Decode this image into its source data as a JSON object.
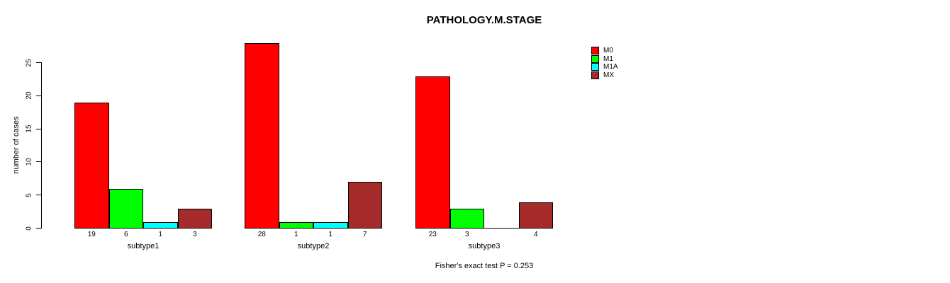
{
  "chart_data": {
    "type": "bar",
    "title": "PATHOLOGY.M.STAGE",
    "ylabel": "number of cases",
    "xlabel": "",
    "categories": [
      "subtype1",
      "subtype2",
      "subtype3"
    ],
    "series": [
      {
        "name": "M0",
        "color": "#ff0000",
        "values": [
          19,
          28,
          23
        ]
      },
      {
        "name": "M1",
        "color": "#00ff00",
        "values": [
          6,
          1,
          3
        ]
      },
      {
        "name": "M1A",
        "color": "#00ffff",
        "values": [
          1,
          1,
          0
        ]
      },
      {
        "name": "MX",
        "color": "#a52a2a",
        "values": [
          3,
          7,
          4
        ]
      }
    ],
    "bar_value_labels": [
      [
        "19",
        "6",
        "1",
        "3"
      ],
      [
        "28",
        "1",
        "1",
        "7"
      ],
      [
        "23",
        "3",
        "",
        "4"
      ]
    ],
    "yticks": [
      0,
      5,
      10,
      15,
      20,
      25
    ],
    "ylim": [
      0,
      28
    ],
    "grid": false,
    "legend_position": "top-right",
    "annotation": "Fisher's exact test P = 0.253"
  }
}
